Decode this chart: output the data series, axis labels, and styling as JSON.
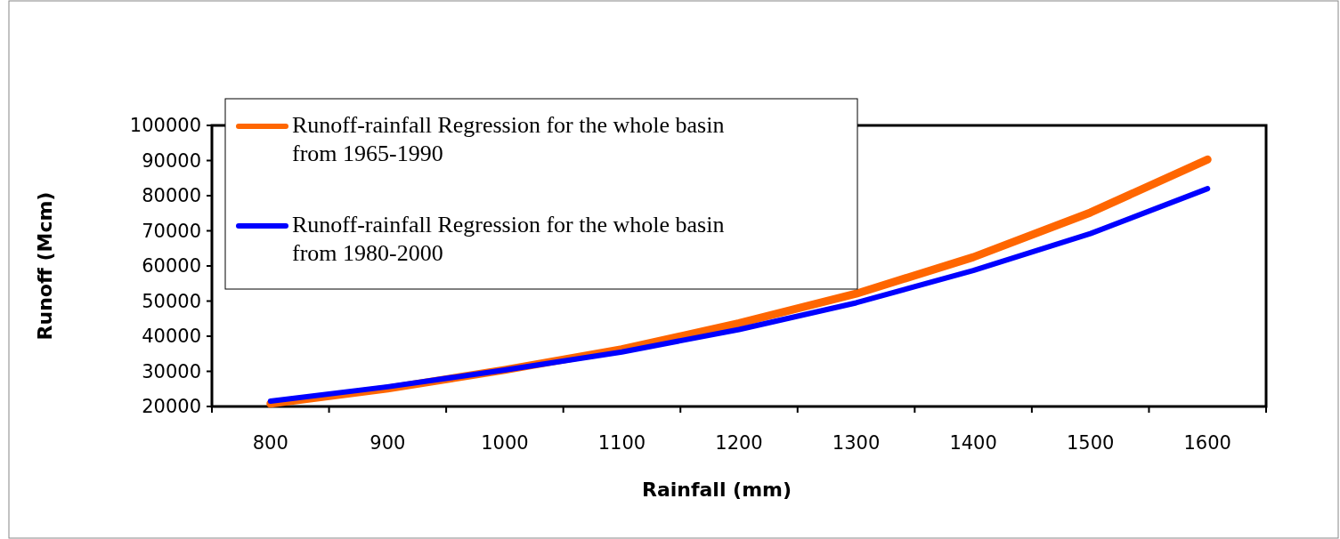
{
  "chart_data": {
    "type": "line",
    "xlabel": "Rainfall (mm)",
    "ylabel": "Runoff (Mcm)",
    "categories": [
      "800",
      "900",
      "1000",
      "1100",
      "1200",
      "1300",
      "1400",
      "1500",
      "1600"
    ],
    "series": [
      {
        "name": "Runoff-rainfall Regression for the whole basin from 1965-1990",
        "color": "#ff6600",
        "values": [
          20800,
          25100,
          30400,
          36300,
          43700,
          52100,
          62500,
          75200,
          90300
        ]
      },
      {
        "name": "Runoff-rainfall Regression for the whole basin from 1980-2000",
        "color": "#0000ff",
        "values": [
          21500,
          25600,
          30400,
          35500,
          41900,
          49500,
          58700,
          69200,
          82000
        ]
      }
    ],
    "ylim": [
      20000,
      100000
    ],
    "yticks": [
      20000,
      30000,
      40000,
      50000,
      60000,
      70000,
      80000,
      90000,
      100000
    ],
    "grid": false,
    "legend": "top left",
    "marker": "none",
    "line_style": "solid"
  }
}
